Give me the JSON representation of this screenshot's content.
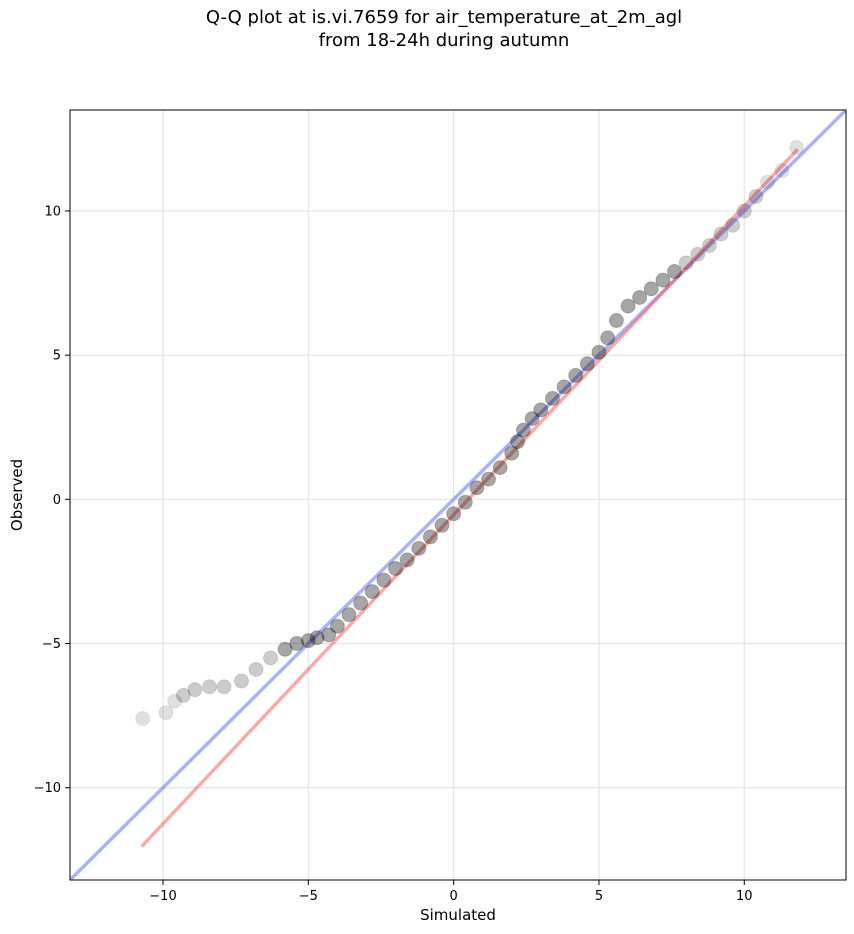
{
  "chart_data": {
    "type": "scatter",
    "title": [
      "Q-Q plot at is.vi.7659 for air_temperature_at_2m_agl",
      "from 18-24h during autumn"
    ],
    "xlabel": "Simulated",
    "ylabel": "Observed",
    "xlim": [
      -13.2,
      13.5
    ],
    "ylim": [
      -13.2,
      13.5
    ],
    "xticks": [
      -10,
      -5,
      0,
      5,
      10
    ],
    "yticks": [
      -10,
      -5,
      0,
      5,
      10
    ],
    "xtick_labels": [
      "−10",
      "−5",
      "0",
      "5",
      "10"
    ],
    "ytick_labels": [
      "−10",
      "−5",
      "0",
      "5",
      "10"
    ],
    "grid": true,
    "point_color": "#000000",
    "reference_line": {
      "x": [
        -13.2,
        13.5
      ],
      "y": [
        -13.2,
        13.5
      ],
      "color": "#5a64f0"
    },
    "fit_line": {
      "x": [
        -10.7,
        11.8
      ],
      "y": [
        -12.0,
        12.1
      ],
      "color": "#f06464"
    },
    "quantiles": {
      "x": [
        -10.7,
        -9.9,
        -9.6,
        -9.3,
        -8.9,
        -8.4,
        -7.9,
        -7.3,
        -6.8,
        -6.3,
        -5.8,
        -5.4,
        -5.0,
        -4.7,
        -4.3,
        -4.0,
        -3.6,
        -3.2,
        -2.8,
        -2.4,
        -2.0,
        -1.6,
        -1.2,
        -0.8,
        -0.4,
        0.0,
        0.4,
        0.8,
        1.2,
        1.6,
        2.0,
        2.2,
        2.4,
        2.7,
        3.0,
        3.4,
        3.8,
        4.2,
        4.6,
        5.0,
        5.3,
        5.6,
        6.0,
        6.4,
        6.8,
        7.2,
        7.6,
        8.0,
        8.4,
        8.8,
        9.2,
        9.6,
        10.0,
        10.4,
        10.8,
        11.3,
        11.8
      ],
      "y": [
        -7.6,
        -7.4,
        -7.0,
        -6.8,
        -6.6,
        -6.5,
        -6.5,
        -6.3,
        -5.9,
        -5.5,
        -5.2,
        -5.0,
        -4.9,
        -4.8,
        -4.7,
        -4.4,
        -4.0,
        -3.6,
        -3.2,
        -2.8,
        -2.4,
        -2.1,
        -1.7,
        -1.3,
        -0.9,
        -0.5,
        -0.1,
        0.4,
        0.7,
        1.1,
        1.6,
        2.0,
        2.4,
        2.8,
        3.1,
        3.5,
        3.9,
        4.3,
        4.7,
        5.1,
        5.6,
        6.2,
        6.7,
        7.0,
        7.3,
        7.6,
        7.9,
        8.2,
        8.5,
        8.8,
        9.2,
        9.5,
        10.0,
        10.5,
        11.0,
        11.4,
        12.2
      ]
    }
  }
}
